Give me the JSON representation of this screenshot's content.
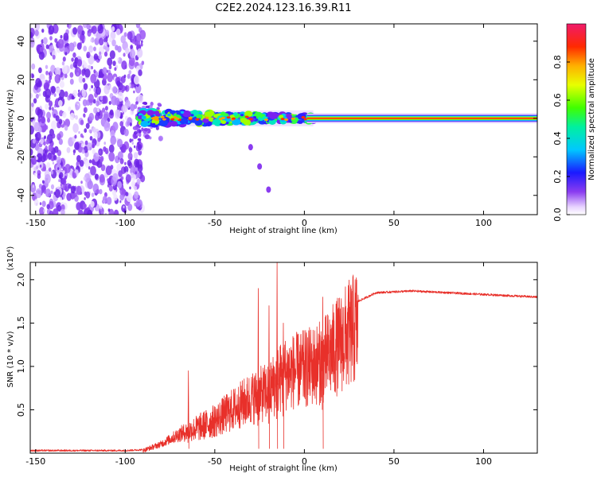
{
  "title": "C2E2.2024.123.16.39.R11",
  "colors": {
    "snr_line": "#e8302a",
    "spectrogram_purple": "#7a1ff0",
    "background": "#ffffff",
    "axis": "#000000"
  },
  "colorbar": {
    "label": "Normalized spectral amplitude",
    "range": [
      0,
      1
    ],
    "ticks": [
      "0.0",
      "0.2",
      "0.4",
      "0.6",
      "0.8"
    ],
    "tick_values": [
      0.0,
      0.2,
      0.4,
      0.6,
      0.8
    ]
  },
  "chart_data": [
    {
      "type": "heatmap",
      "name": "spectrogram",
      "xlabel": "Height of straight line (km)",
      "ylabel": "Frequency (Hz)",
      "xlim": [
        -153,
        130
      ],
      "ylim": [
        -50,
        49
      ],
      "x_ticks": [
        "-150",
        "-100",
        "-50",
        "0",
        "50",
        "100"
      ],
      "x_tick_values": [
        -150,
        -100,
        -50,
        0,
        50,
        100
      ],
      "y_ticks": [
        "-40",
        "-20",
        "0",
        "20",
        "40"
      ],
      "y_tick_values": [
        -40,
        -20,
        0,
        20,
        40
      ],
      "noise_region_x": [
        -153,
        -90
      ],
      "signal_band": {
        "x_start": -92,
        "x_end": 130,
        "freq_center": 0,
        "steady_from_x": 5
      },
      "tail_points": [
        {
          "x": -30,
          "y": -15
        },
        {
          "x": -25,
          "y": -25
        },
        {
          "x": -20,
          "y": -37
        }
      ]
    },
    {
      "type": "line",
      "name": "snr",
      "xlabel": "Height of straight line (km)",
      "ylabel": "SNR (10 * v/v)",
      "y_scale_label": "(x10⁴)",
      "xlim": [
        -153,
        130
      ],
      "ylim": [
        0,
        2.2
      ],
      "x_ticks": [
        "-150",
        "-100",
        "-50",
        "0",
        "50",
        "100"
      ],
      "x_tick_values": [
        -150,
        -100,
        -50,
        0,
        50,
        100
      ],
      "y_ticks": [
        "0.5",
        "1.0",
        "1.5",
        "2.0"
      ],
      "y_tick_values": [
        0.5,
        1.0,
        1.5,
        2.0
      ],
      "series": [
        {
          "name": "SNR envelope",
          "x": [
            -153,
            -100,
            -90,
            -80,
            -70,
            -60,
            -50,
            -40,
            -30,
            -25,
            -20,
            -15,
            -10,
            0,
            10,
            20,
            30,
            40,
            50,
            60,
            70,
            80,
            90,
            100,
            110,
            120,
            130
          ],
          "values": [
            0.03,
            0.03,
            0.04,
            0.12,
            0.25,
            0.35,
            0.45,
            0.6,
            0.75,
            0.8,
            0.85,
            1.0,
            1.1,
            1.15,
            1.25,
            1.5,
            1.75,
            1.85,
            1.86,
            1.87,
            1.86,
            1.85,
            1.84,
            1.83,
            1.82,
            1.81,
            1.8
          ]
        }
      ],
      "peaks": [
        {
          "x": -15.5,
          "y": 2.2
        },
        {
          "x": -26,
          "y": 1.9
        },
        {
          "x": -20,
          "y": 1.7
        },
        {
          "x": -12,
          "y": 1.5
        },
        {
          "x": 10,
          "y": 1.8
        },
        {
          "x": -65,
          "y": 0.95
        }
      ]
    }
  ]
}
